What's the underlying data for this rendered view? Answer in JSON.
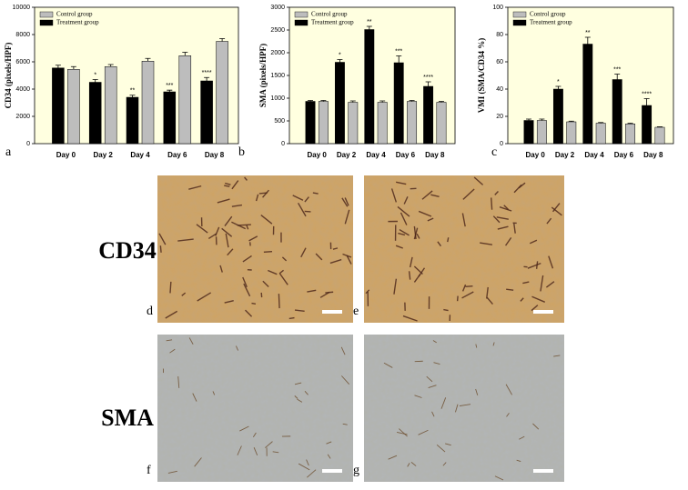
{
  "chart_data": [
    {
      "type": "bar",
      "panel_label": "a",
      "ylabel": "CD34 (pixels/HPF)",
      "categories": [
        "Day 0",
        "Day 2",
        "Day 4",
        "Day 6",
        "Day 8"
      ],
      "series": [
        {
          "name": "Treatment group",
          "color": "#000000",
          "values": [
            5550,
            4500,
            3400,
            3800,
            4600
          ],
          "errors": [
            200,
            200,
            150,
            120,
            250
          ],
          "significance": [
            null,
            "*",
            "**",
            "***",
            "****"
          ]
        },
        {
          "name": "Control group",
          "color": "#bdbdbd",
          "values": [
            5450,
            5650,
            6050,
            6450,
            7500
          ],
          "errors": [
            200,
            150,
            200,
            250,
            200
          ]
        }
      ],
      "ylim": [
        0,
        10000
      ],
      "yticks": [
        0,
        2000,
        4000,
        6000,
        8000,
        10000
      ],
      "legend": "upper left",
      "background": "#ffffe0"
    },
    {
      "type": "bar",
      "panel_label": "b",
      "ylabel": "SMA (pixels/HPF)",
      "categories": [
        "Day 0",
        "Day 2",
        "Day 4",
        "Day 6",
        "Day 8"
      ],
      "series": [
        {
          "name": "Treatment group",
          "color": "#000000",
          "values": [
            930,
            1790,
            2510,
            1780,
            1260
          ],
          "errors": [
            20,
            60,
            70,
            150,
            100
          ],
          "significance": [
            null,
            "*",
            "**",
            "***",
            "****"
          ]
        },
        {
          "name": "Control group",
          "color": "#bdbdbd",
          "values": [
            930,
            910,
            910,
            930,
            910
          ],
          "errors": [
            20,
            30,
            30,
            20,
            20
          ]
        }
      ],
      "ylim": [
        0,
        3000
      ],
      "yticks": [
        0,
        500,
        1000,
        1500,
        2000,
        2500,
        3000
      ],
      "legend": "upper left",
      "background": "#ffffe0"
    },
    {
      "type": "bar",
      "panel_label": "c",
      "ylabel": "VMI (SMA/CD34 %)",
      "categories": [
        "Day 0",
        "Day 2",
        "Day 4",
        "Day 6",
        "Day 8"
      ],
      "series": [
        {
          "name": "Treatment group",
          "color": "#000000",
          "values": [
            17,
            40,
            73,
            47,
            28
          ],
          "errors": [
            1,
            2,
            5,
            4,
            5
          ],
          "significance": [
            null,
            "*",
            "**",
            "***",
            "****"
          ]
        },
        {
          "name": "Control group",
          "color": "#bdbdbd",
          "values": [
            17,
            16,
            15,
            14.5,
            12
          ],
          "errors": [
            1,
            0.5,
            0.5,
            0.5,
            0.3
          ]
        }
      ],
      "ylim": [
        0,
        100
      ],
      "yticks": [
        0,
        20,
        40,
        60,
        80,
        100
      ],
      "legend": "upper left",
      "background": "#ffffe0"
    }
  ],
  "image_panels": {
    "row_labels": [
      "CD34",
      "SMA"
    ],
    "panels": [
      {
        "label": "d"
      },
      {
        "label": "e"
      },
      {
        "label": "f"
      },
      {
        "label": "g"
      }
    ]
  }
}
